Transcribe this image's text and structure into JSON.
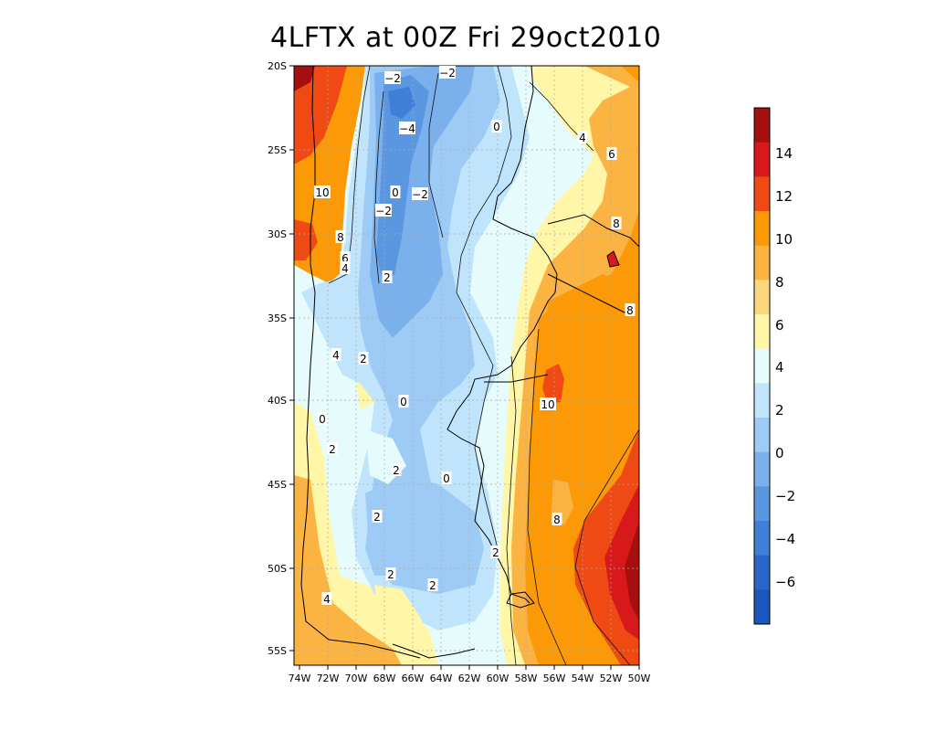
{
  "title": "4LFTX at 00Z Fri 29oct2010",
  "map": {
    "lat_ticks": [
      "20S",
      "25S",
      "30S",
      "35S",
      "40S",
      "45S",
      "50S",
      "55S"
    ],
    "lon_ticks": [
      "74W",
      "72W",
      "70W",
      "68W",
      "66W",
      "64W",
      "62W",
      "60W",
      "58W",
      "56W",
      "54W",
      "52W",
      "50W"
    ],
    "extent": {
      "lon_min": -75,
      "lon_max": -50,
      "lat_min": -56,
      "lat_max": -20
    },
    "grid": true
  },
  "colorbar": {
    "labels": [
      "14",
      "12",
      "10",
      "8",
      "6",
      "4",
      "2",
      "0",
      "−2",
      "−4",
      "−6"
    ],
    "colors": [
      "#a50f0f",
      "#d7191c",
      "#f04a14",
      "#fb9a06",
      "#fbb441",
      "#fdd77e",
      "#fff6a8",
      "#e6fbfb",
      "#bfe4fb",
      "#9dcbf5",
      "#7ab0ec",
      "#5b96e0",
      "#3f7fd8",
      "#2a66c9",
      "#1a56bd"
    ]
  },
  "contour_labels": [
    {
      "text": "−2"
    },
    {
      "text": "−2"
    },
    {
      "text": "−4"
    },
    {
      "text": "0"
    },
    {
      "text": "4"
    },
    {
      "text": "6"
    },
    {
      "text": "10"
    },
    {
      "text": "0"
    },
    {
      "text": "−2"
    },
    {
      "text": "−2"
    },
    {
      "text": "8"
    },
    {
      "text": "8"
    },
    {
      "text": "6"
    },
    {
      "text": "4"
    },
    {
      "text": "2"
    },
    {
      "text": "8"
    },
    {
      "text": "4"
    },
    {
      "text": "2"
    },
    {
      "text": "0"
    },
    {
      "text": "10"
    },
    {
      "text": "0"
    },
    {
      "text": "2"
    },
    {
      "text": "2"
    },
    {
      "text": "0"
    },
    {
      "text": "2"
    },
    {
      "text": "8"
    },
    {
      "text": "2"
    },
    {
      "text": "2"
    },
    {
      "text": "2"
    },
    {
      "text": "4"
    }
  ]
}
